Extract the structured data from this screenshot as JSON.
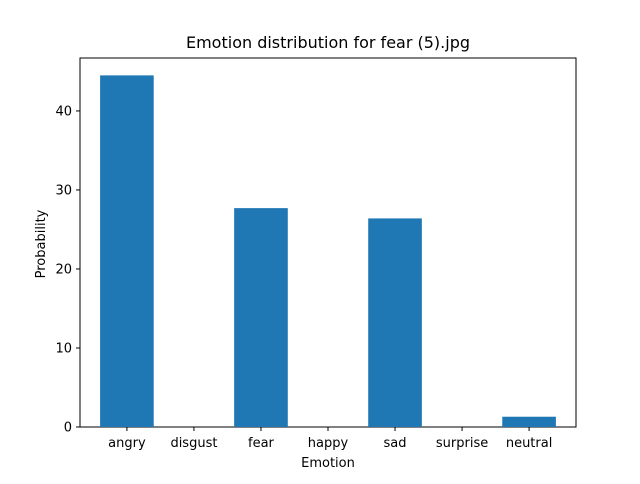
{
  "chart_data": {
    "type": "bar",
    "title": "Emotion distribution for fear (5).jpg",
    "xlabel": "Emotion",
    "ylabel": "Probability",
    "categories": [
      "angry",
      "disgust",
      "fear",
      "happy",
      "sad",
      "surprise",
      "neutral"
    ],
    "values": [
      44.5,
      0,
      27.7,
      0,
      26.4,
      0,
      1.3
    ],
    "ylim": [
      0,
      46.7
    ],
    "yticks": [
      0,
      10,
      20,
      30,
      40
    ],
    "grid": false,
    "legend": "none",
    "bar_color": "#1f77b4"
  }
}
